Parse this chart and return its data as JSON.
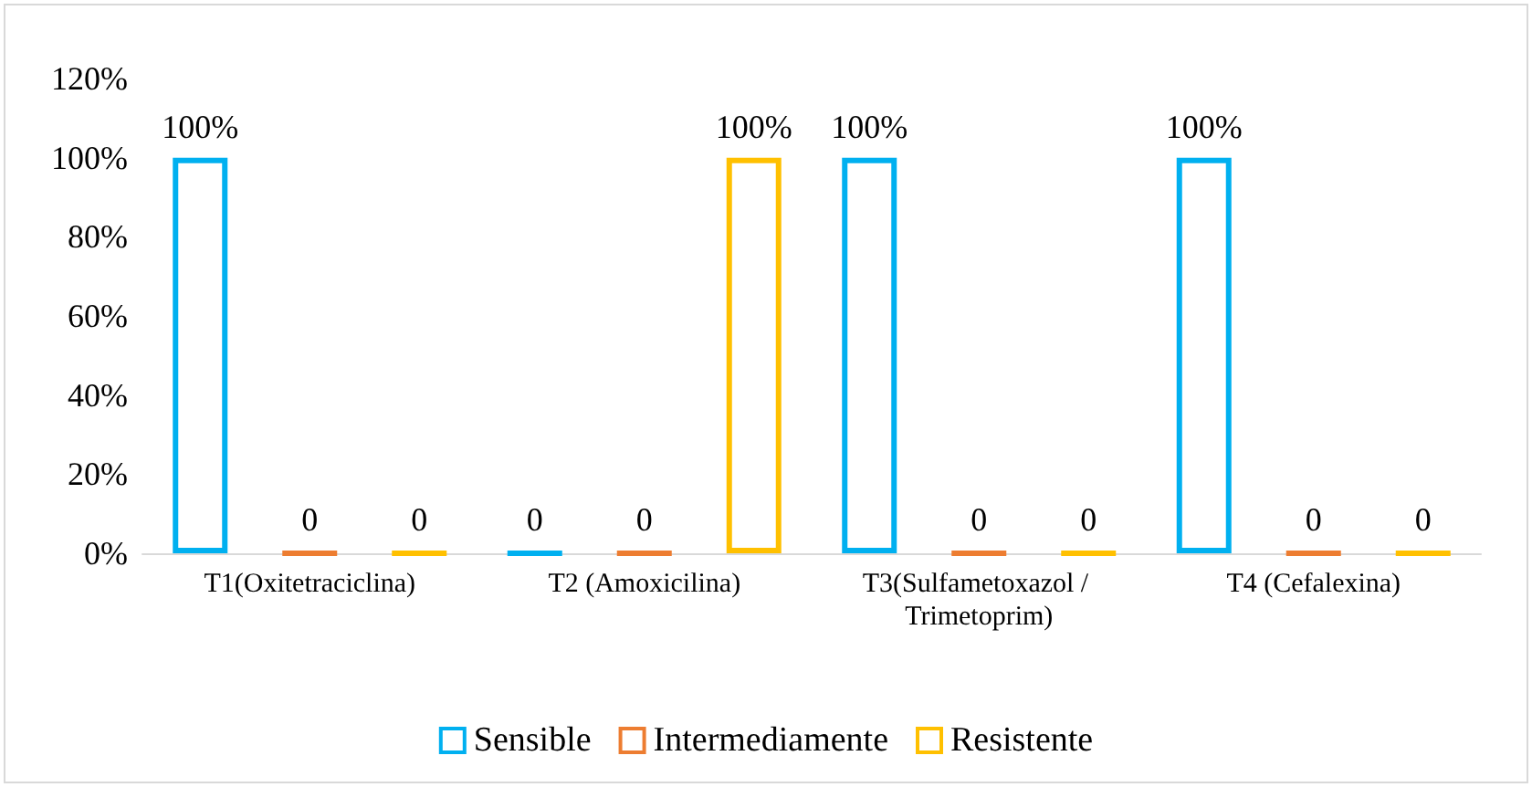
{
  "chart_data": {
    "type": "bar",
    "categories": [
      "T1(Oxitetraciclina)",
      "T2 (Amoxicilina)",
      "T3(Sulfametoxazol / Trimetoprim)",
      "T4 (Cefalexina)"
    ],
    "series": [
      {
        "name": "Sensible",
        "color": "#00b0f0",
        "values": [
          100,
          0,
          100,
          100
        ],
        "value_labels": [
          "100%",
          "0",
          "100%",
          "100%"
        ]
      },
      {
        "name": "Intermediamente",
        "color": "#ed7d31",
        "values": [
          0,
          0,
          0,
          0
        ],
        "value_labels": [
          "0",
          "0",
          "0",
          "0"
        ]
      },
      {
        "name": "Resistente",
        "color": "#ffc000",
        "values": [
          0,
          100,
          0,
          0
        ],
        "value_labels": [
          "0",
          "100%",
          "0",
          "0"
        ]
      }
    ],
    "ylim": [
      0,
      120
    ],
    "yticks": [
      {
        "value": 0,
        "label": "0%"
      },
      {
        "value": 20,
        "label": "20%"
      },
      {
        "value": 40,
        "label": "40%"
      },
      {
        "value": 60,
        "label": "60%"
      },
      {
        "value": 80,
        "label": "80%"
      },
      {
        "value": 100,
        "label": "100%"
      },
      {
        "value": 120,
        "label": "120%"
      }
    ],
    "grid": false,
    "legend": "bottom"
  }
}
